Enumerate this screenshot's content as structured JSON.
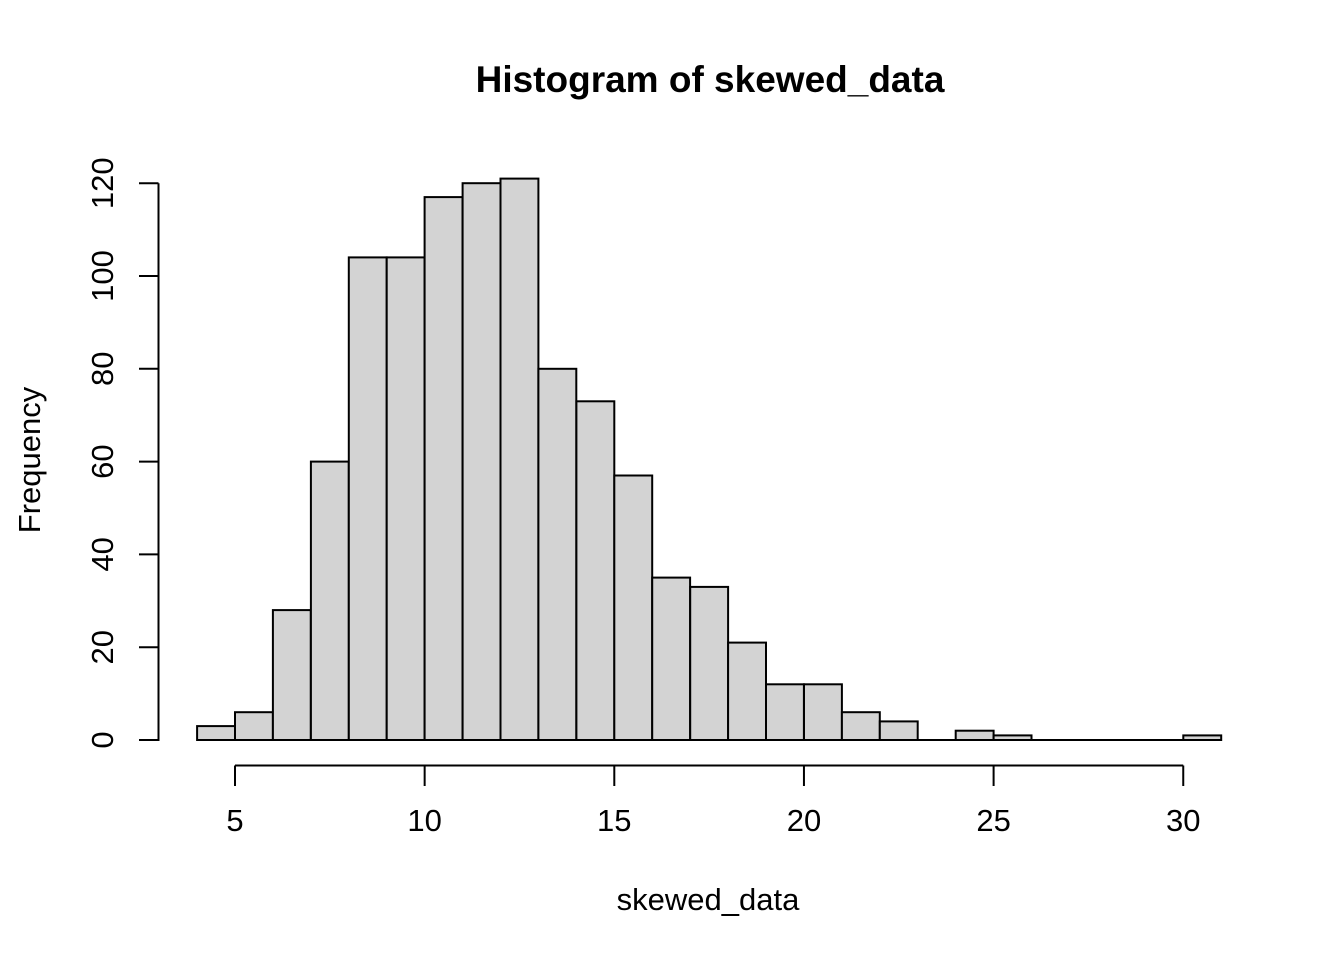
{
  "chart_data": {
    "type": "bar",
    "subtype": "histogram",
    "title": "Histogram of skewed_data",
    "xlabel": "skewed_data",
    "ylabel": "Frequency",
    "bin_start": 4,
    "bin_width": 1,
    "counts": [
      3,
      6,
      28,
      60,
      104,
      104,
      117,
      120,
      121,
      80,
      73,
      57,
      35,
      33,
      21,
      12,
      12,
      6,
      4,
      0,
      2,
      1,
      0,
      0,
      0,
      0,
      1
    ],
    "x_ticks": [
      5,
      10,
      15,
      20,
      25,
      30
    ],
    "y_ticks": [
      0,
      20,
      40,
      60,
      80,
      100,
      120
    ],
    "xlim": [
      4,
      31
    ],
    "ylim": [
      0,
      120
    ],
    "grid": "off",
    "legend": "none",
    "bar_fill": "#d3d3d3",
    "bar_stroke": "#000000",
    "axis_color": "#000000",
    "background": "#ffffff"
  }
}
